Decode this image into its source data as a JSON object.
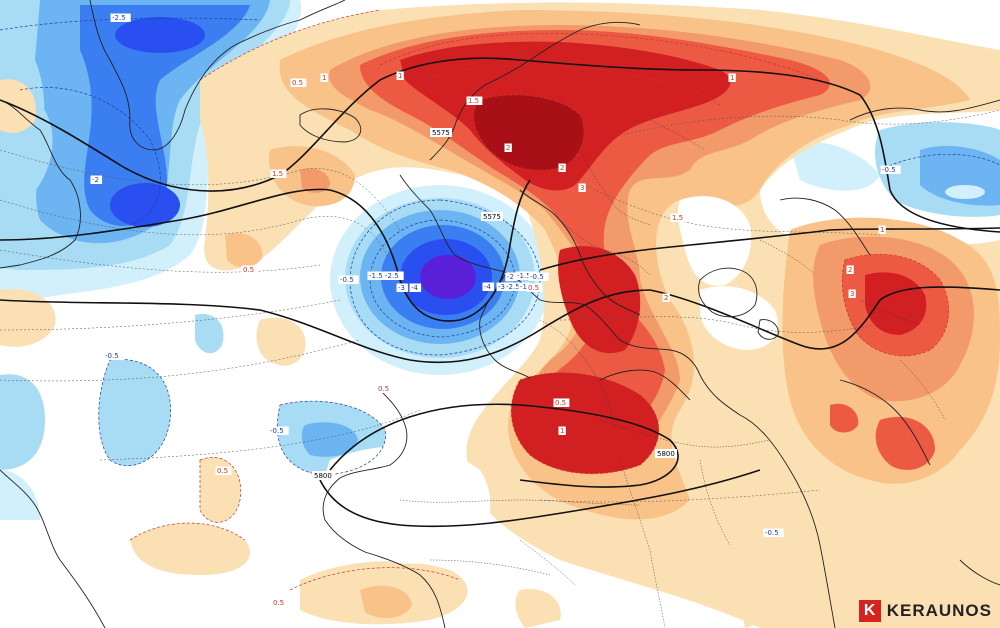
{
  "map": {
    "colors": {
      "neg_very_strong": "#5a1fd8",
      "neg_strong": "#2a4ff0",
      "neg_medium": "#3a7ef2",
      "neg_mid": "#6db4f2",
      "neg_light": "#a8dcf5",
      "neg_faint": "#d2f0fb",
      "pos_faint": "#fbe0b4",
      "pos_light": "#f8c288",
      "pos_mid": "#f29a6a",
      "pos_strong": "#ec5a44",
      "pos_very_strong": "#d21f22",
      "pos_extreme": "#a80f17",
      "geopotential_line": "#111111",
      "coast_line": "#222222",
      "contour_pos": "#c0392b",
      "contour_neg": "#1f3fa0"
    },
    "geopotential_labels": [
      "5575",
      "5575",
      "5800",
      "5800"
    ],
    "anomaly_labels": [
      "-2.5",
      "-2",
      "-1",
      "-0.5",
      "-0.5",
      "-0.5",
      "-0.5",
      "-0.5",
      "-1.5",
      "-2.5",
      "-3",
      "-4",
      "-4",
      "-3",
      "-2",
      "-2.5",
      "-1.5",
      "-1",
      "-0.5",
      "0.5",
      "0.5",
      "0.5",
      "0.5",
      "1",
      "1",
      "1",
      "1.5",
      "1.5",
      "2",
      "2",
      "2",
      "3",
      "3",
      "1",
      "1.5",
      "2",
      "1",
      "0.5",
      "0.5",
      "0.5"
    ]
  },
  "brand": {
    "name": "KERAUNOS",
    "mark_icon": "keraunos-logo-icon"
  }
}
